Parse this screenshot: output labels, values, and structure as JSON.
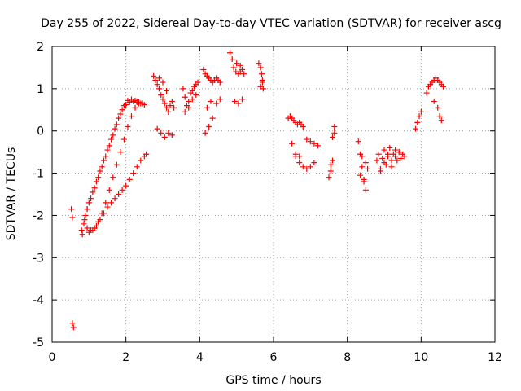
{
  "chart_data": {
    "type": "scatter",
    "title": "Day 255 of 2022, Sidereal Day-to-day VTEC variation (SDTVAR) for receiver ascg",
    "xlabel": "GPS time / hours",
    "ylabel": "SDTVAR / TECUs",
    "xlim": [
      0,
      12
    ],
    "ylim": [
      -5,
      2
    ],
    "xticks": [
      "0",
      "2",
      "4",
      "6",
      "8",
      "10",
      "12"
    ],
    "yticks": [
      "-5",
      "-4",
      "-3",
      "-2",
      "-1",
      "0",
      "1",
      "2"
    ],
    "grid": true,
    "marker": "+",
    "marker_color": "#ff0000",
    "series": [
      {
        "x": [
          0.52,
          0.55,
          0.55,
          0.58,
          0.8,
          0.88,
          0.95,
          1.05,
          1.15,
          1.25,
          1.35,
          1.45,
          1.55,
          1.65,
          1.75,
          1.85,
          1.95,
          2.05,
          2.15,
          2.25,
          2.35,
          2.45,
          0.82,
          0.86,
          0.9,
          0.95,
          1.0,
          1.1,
          1.2,
          1.3,
          1.4,
          1.5,
          1.6,
          1.7,
          1.8,
          1.9,
          2.0,
          2.1,
          2.2,
          2.3,
          2.4,
          2.5,
          0.95,
          1.05,
          1.15,
          1.25,
          1.35,
          1.45,
          1.55,
          1.65,
          1.75,
          1.85,
          1.95,
          2.05,
          2.15,
          2.25,
          2.35,
          1.0,
          1.1,
          1.2,
          1.3,
          1.4,
          1.5,
          1.6,
          1.7,
          1.8,
          1.9,
          2.0,
          2.1,
          2.2,
          2.3,
          2.4,
          2.5,
          2.55,
          2.75,
          2.8,
          2.85,
          2.9,
          2.95,
          3.0,
          3.05,
          3.1,
          3.15,
          3.2,
          3.25,
          3.3,
          2.85,
          2.95,
          3.05,
          3.15,
          3.25,
          2.9,
          3.0,
          3.1,
          3.55,
          3.6,
          3.65,
          3.7,
          3.75,
          3.8,
          3.85,
          3.9,
          3.95,
          3.6,
          3.7,
          3.8,
          3.9,
          4.1,
          4.15,
          4.2,
          4.25,
          4.3,
          4.35,
          4.4,
          4.45,
          4.5,
          4.55,
          4.15,
          4.25,
          4.35,
          4.45,
          4.55,
          4.2,
          4.3,
          4.82,
          4.88,
          4.92,
          4.98,
          5.05,
          5.1,
          5.15,
          5.2,
          4.95,
          5.05,
          5.15,
          5.0,
          5.1,
          5.6,
          5.65,
          5.68,
          5.7,
          5.72,
          5.65,
          5.7,
          6.4,
          6.45,
          6.5,
          6.55,
          6.6,
          6.65,
          6.7,
          6.75,
          6.8,
          6.9,
          7.0,
          7.1,
          7.2,
          6.5,
          6.6,
          6.7,
          6.8,
          6.9,
          7.0,
          7.1,
          6.6,
          6.7,
          7.5,
          7.55,
          7.6,
          7.65,
          7.55,
          7.6,
          7.65,
          8.3,
          8.35,
          8.4,
          8.45,
          8.5,
          8.35,
          8.45,
          8.55,
          8.4,
          8.5,
          8.8,
          8.85,
          8.9,
          8.95,
          9.0,
          9.05,
          9.1,
          9.15,
          9.2,
          9.25,
          9.3,
          9.35,
          9.4,
          9.45,
          9.5,
          9.55,
          8.9,
          9.0,
          9.1,
          9.2,
          9.3,
          9.4,
          9.85,
          9.9,
          9.95,
          10.0,
          10.15,
          10.2,
          10.25,
          10.3,
          10.35,
          10.4,
          10.45,
          10.5,
          10.55,
          10.6,
          10.35,
          10.45,
          10.5,
          10.55
        ],
        "y": [
          -1.85,
          -2.05,
          -4.55,
          -4.65,
          -2.35,
          -2.1,
          -1.85,
          -1.6,
          -1.35,
          -1.1,
          -0.85,
          -0.6,
          -0.35,
          -0.1,
          0.15,
          0.4,
          0.6,
          0.72,
          0.75,
          0.72,
          0.68,
          0.65,
          -2.45,
          -2.2,
          -2.0,
          -1.85,
          -1.7,
          -1.45,
          -1.2,
          -0.95,
          -0.7,
          -0.45,
          -0.2,
          0.05,
          0.3,
          0.5,
          0.62,
          0.68,
          0.7,
          0.68,
          0.65,
          0.62,
          -2.3,
          -2.35,
          -2.3,
          -2.15,
          -1.95,
          -1.7,
          -1.4,
          -1.1,
          -0.8,
          -0.5,
          -0.2,
          0.1,
          0.35,
          0.55,
          0.65,
          -2.4,
          -2.35,
          -2.25,
          -2.1,
          -1.95,
          -1.8,
          -1.7,
          -1.6,
          -1.5,
          -1.4,
          -1.3,
          -1.15,
          -1.0,
          -0.85,
          -0.7,
          -0.6,
          -0.55,
          1.3,
          1.2,
          1.1,
          1.0,
          0.85,
          0.75,
          0.65,
          0.55,
          0.45,
          0.6,
          0.7,
          0.55,
          0.05,
          -0.05,
          -0.15,
          -0.05,
          -0.1,
          1.25,
          1.15,
          0.95,
          1.0,
          0.8,
          0.6,
          0.7,
          0.9,
          0.95,
          1.05,
          1.1,
          1.15,
          0.45,
          0.55,
          0.75,
          0.85,
          1.45,
          1.35,
          1.3,
          1.25,
          1.2,
          1.15,
          1.2,
          1.25,
          1.2,
          1.15,
          -0.05,
          0.1,
          0.3,
          0.65,
          0.75,
          0.55,
          0.7,
          1.85,
          1.7,
          1.5,
          1.4,
          1.35,
          1.4,
          1.45,
          1.35,
          0.7,
          0.65,
          0.75,
          1.6,
          1.55,
          1.6,
          1.5,
          1.35,
          1.15,
          1.0,
          1.05,
          1.2,
          0.3,
          0.35,
          0.3,
          0.25,
          0.2,
          0.15,
          0.2,
          0.15,
          0.1,
          -0.2,
          -0.25,
          -0.3,
          -0.35,
          -0.3,
          -0.55,
          -0.6,
          -0.85,
          -0.9,
          -0.85,
          -0.75,
          -0.6,
          -0.75,
          -1.1,
          -0.95,
          -0.15,
          0.1,
          -0.8,
          -0.7,
          -0.05,
          -0.25,
          -0.55,
          -0.85,
          -1.15,
          -1.4,
          -1.05,
          -1.2,
          -0.9,
          -0.6,
          -0.75,
          -0.7,
          -0.55,
          -0.9,
          -0.65,
          -0.45,
          -0.8,
          -0.6,
          -0.4,
          -0.85,
          -0.55,
          -0.45,
          -0.7,
          -0.5,
          -0.65,
          -0.55,
          -0.6,
          -0.95,
          -0.75,
          -0.55,
          -0.7,
          -0.6,
          -0.5,
          0.05,
          0.2,
          0.35,
          0.45,
          0.9,
          1.05,
          1.1,
          1.15,
          1.2,
          1.25,
          1.2,
          1.15,
          1.1,
          1.05,
          0.7,
          0.55,
          0.35,
          0.25
        ]
      }
    ]
  }
}
